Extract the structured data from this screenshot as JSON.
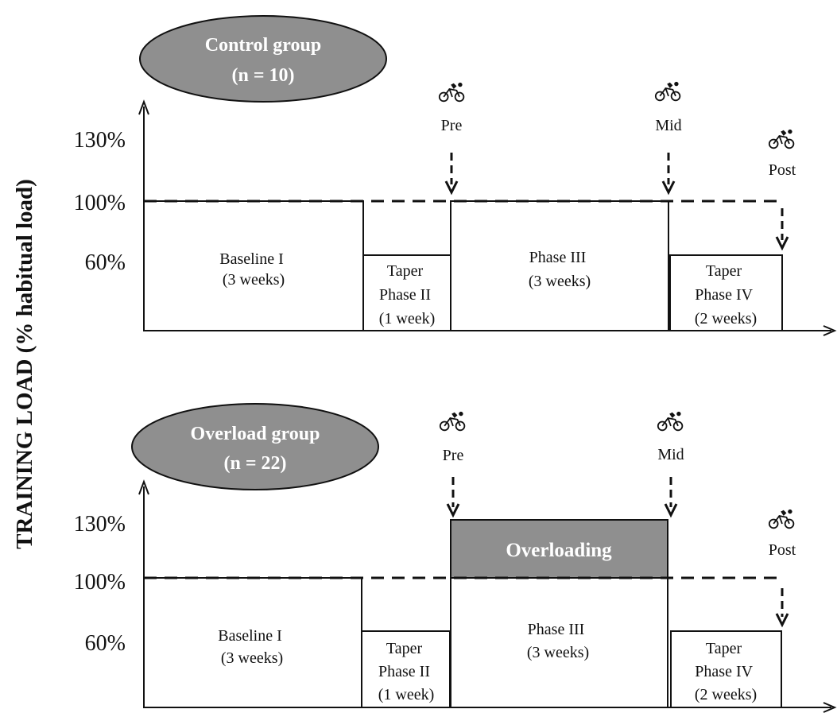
{
  "y_axis_title": "TRAINING LOAD (% habitual load)",
  "colors": {
    "ellipse_fill": "#8f8f8f",
    "overload_fill": "#8f8f8f",
    "stroke": "#111111"
  },
  "icon": "cyclist-icon",
  "panels": [
    {
      "group_line1": "Control group",
      "group_line2": "(n = 10)",
      "tick_130": "130%",
      "tick_100": "100%",
      "tick_60": "60%",
      "phases": [
        {
          "lines": [
            "Baseline I",
            "(3 weeks)"
          ],
          "load": 100,
          "weeks": 3
        },
        {
          "lines": [
            "Taper",
            "Phase II",
            "(1 week)"
          ],
          "load": 60,
          "weeks": 1
        },
        {
          "lines": [
            "Phase III",
            "(3 weeks)"
          ],
          "load": 100,
          "weeks": 3
        },
        {
          "lines": [
            "Taper",
            "Phase IV",
            "(2 weeks)"
          ],
          "load": 60,
          "weeks": 2
        }
      ],
      "tests": [
        "Pre",
        "Mid",
        "Post"
      ]
    },
    {
      "group_line1": "Overload  group",
      "group_line2": "(n = 22)",
      "tick_130": "130%",
      "tick_100": "100%",
      "tick_60": "60%",
      "phases": [
        {
          "lines": [
            "Baseline I",
            "(3 weeks)"
          ],
          "load": 100,
          "weeks": 3
        },
        {
          "lines": [
            "Taper",
            "Phase II",
            "(1 week)"
          ],
          "load": 60,
          "weeks": 1
        },
        {
          "lines": [
            "Phase III",
            "(3 weeks)"
          ],
          "load": 130,
          "weeks": 3
        },
        {
          "lines": [
            "Taper",
            "Phase IV",
            "(2 weeks)"
          ],
          "load": 60,
          "weeks": 2
        }
      ],
      "overload_label": "Overloading",
      "tests": [
        "Pre",
        "Mid",
        "Post"
      ]
    }
  ]
}
